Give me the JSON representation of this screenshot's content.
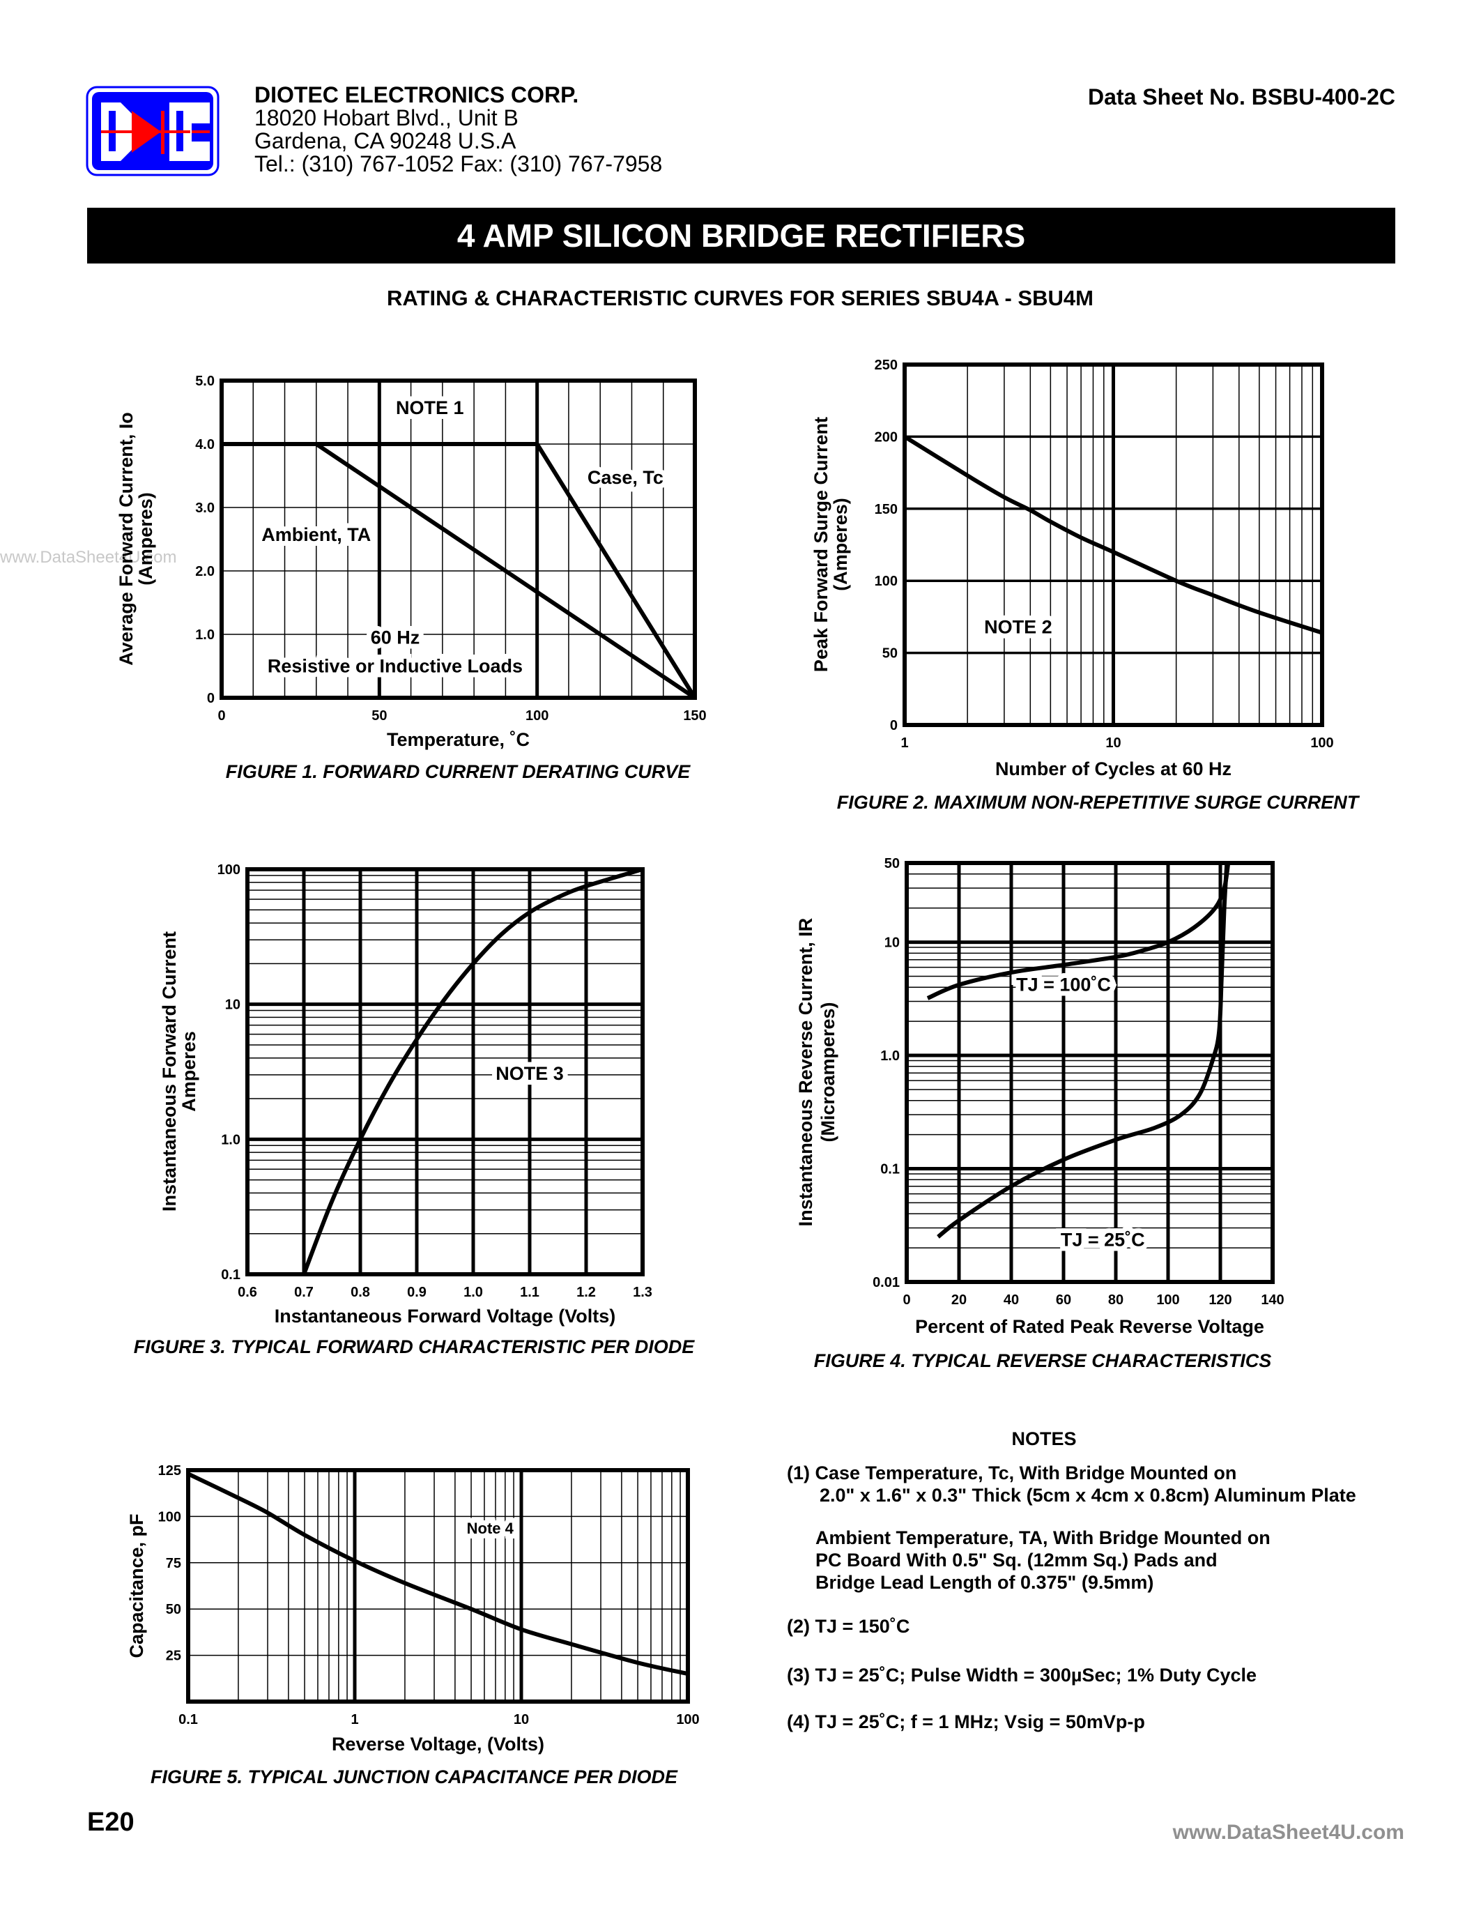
{
  "header": {
    "company": "DIOTEC   ELECTRONICS   CORP.",
    "address1": "18020 Hobart Blvd.,  Unit B",
    "address2": "Gardena, CA  90248    U.S.A",
    "phone": "Tel.:  (310) 767-1052    Fax:  (310) 767-7958",
    "datasheet_no": "Data Sheet No.  BSBU-400-2C",
    "logo_text": "DIC",
    "logo_colors": {
      "blue": "#0000ff",
      "red": "#ff0000"
    }
  },
  "title": "4 AMP SILICON BRIDGE RECTIFIERS",
  "subtitle": "RATING & CHARACTERISTIC CURVES FOR SERIES SBU4A - SBU4M",
  "watermark_left": "www.DataSheet4U.com",
  "watermark_right": "www.DataSheet4U.com",
  "page_number": "E20",
  "chart_data": [
    {
      "type": "line",
      "caption": "FIGURE 1.  FORWARD CURRENT DERATING CURVE",
      "xlabel": "Temperature, ˚C",
      "ylabel": [
        "Average Forward Current, Io",
        "(Amperes)"
      ],
      "xlim": [
        0,
        150
      ],
      "ylim": [
        0,
        5
      ],
      "xticks": [
        "0",
        "50",
        "100",
        "150"
      ],
      "yticks": [
        "0",
        "1.0",
        "2.0",
        "3.0",
        "4.0",
        "5.0"
      ],
      "grid": true,
      "series": [
        {
          "name": "Ambient, TA",
          "x": [
            0,
            30,
            150
          ],
          "y": [
            4,
            4,
            0
          ]
        },
        {
          "name": "Case, Tc",
          "x": [
            0,
            100,
            150
          ],
          "y": [
            4,
            4,
            0
          ]
        }
      ],
      "annotations": [
        "NOTE 1",
        "Case, Tc",
        "Ambient, TA",
        "60 Hz",
        "Resistive or Inductive Loads"
      ]
    },
    {
      "type": "line",
      "caption": "FIGURE 2.  MAXIMUM NON-REPETITIVE SURGE CURRENT",
      "xlabel": "Number of Cycles at 60 Hz",
      "ylabel": [
        "Peak Forward Surge Current",
        "(Amperes)"
      ],
      "xscale": "log",
      "xlim": [
        1,
        100
      ],
      "ylim": [
        0,
        250
      ],
      "xticks": [
        "1",
        "10",
        "100"
      ],
      "yticks": [
        "0",
        "50",
        "100",
        "150",
        "200",
        "250"
      ],
      "grid": true,
      "series": [
        {
          "x": [
            1,
            2,
            3,
            4,
            5,
            7,
            10,
            20,
            30,
            50,
            100
          ],
          "y": [
            200,
            173,
            158,
            149,
            141,
            130,
            120,
            100,
            90,
            78,
            64
          ]
        }
      ],
      "annotations": [
        "NOTE 2"
      ]
    },
    {
      "type": "line",
      "caption": "FIGURE 3.  TYPICAL FORWARD CHARACTERISTIC PER DIODE",
      "xlabel": "Instantaneous Forward Voltage (Volts)",
      "ylabel": [
        "Instantaneous Forward Current",
        "Amperes"
      ],
      "xlim": [
        0.6,
        1.3
      ],
      "yscale": "log",
      "ylim": [
        0.1,
        100
      ],
      "xticks": [
        "0.6",
        "0.7",
        "0.8",
        "0.9",
        "1.0",
        "1.1",
        "1.2",
        "1.3"
      ],
      "yticks": [
        "0.1",
        "1.0",
        "10",
        "100"
      ],
      "grid": true,
      "series": [
        {
          "x": [
            0.7,
            0.75,
            0.8,
            0.85,
            0.9,
            0.95,
            1.0,
            1.05,
            1.1,
            1.15,
            1.2,
            1.3
          ],
          "y": [
            0.1,
            0.35,
            1.0,
            2.5,
            5.5,
            11,
            20,
            33,
            48,
            62,
            75,
            100
          ]
        }
      ],
      "annotations": [
        "NOTE 3"
      ]
    },
    {
      "type": "line",
      "caption": "FIGURE 4.  TYPICAL REVERSE CHARACTERISTICS",
      "xlabel": "Percent of Rated Peak Reverse Voltage",
      "ylabel": [
        "Instantaneous Reverse Current, IR",
        "(Microamperes)"
      ],
      "xlim": [
        0,
        140
      ],
      "yscale": "log",
      "ylim": [
        0.01,
        50
      ],
      "xticks": [
        "0",
        "20",
        "40",
        "60",
        "80",
        "100",
        "120",
        "140"
      ],
      "yticks": [
        "0.01",
        "0.1",
        "1.0",
        "10",
        "50"
      ],
      "grid": true,
      "series": [
        {
          "name": "TJ = 100˚C",
          "x": [
            8,
            20,
            40,
            60,
            80,
            90,
            100,
            110,
            118,
            121.5,
            123
          ],
          "y": [
            3.2,
            4.2,
            5.4,
            6.3,
            7.4,
            8.4,
            10,
            13.5,
            20,
            30,
            50
          ]
        },
        {
          "name": "TJ = 25˚C",
          "x": [
            12,
            20,
            40,
            60,
            80,
            95,
            105,
            112,
            117,
            119.5,
            120.5,
            121.5,
            122.5
          ],
          "y": [
            0.025,
            0.035,
            0.07,
            0.12,
            0.18,
            0.23,
            0.3,
            0.45,
            0.9,
            1.6,
            5,
            20,
            50
          ]
        }
      ],
      "annotations": [
        "TJ = 100˚C",
        "TJ = 25˚C"
      ]
    },
    {
      "type": "line",
      "caption": "FIGURE 5.  TYPICAL JUNCTION CAPACITANCE PER DIODE",
      "xlabel": "Reverse Voltage, (Volts)",
      "ylabel": [
        "Capacitance, pF"
      ],
      "xscale": "log",
      "xlim": [
        0.1,
        100
      ],
      "ylim": [
        0,
        125
      ],
      "xticks": [
        "0.1",
        "1",
        "10",
        "100"
      ],
      "yticks": [
        "25",
        "50",
        "75",
        "100",
        "125"
      ],
      "grid": true,
      "series": [
        {
          "x": [
            0.1,
            0.2,
            0.3,
            0.5,
            1,
            2,
            5,
            10,
            20,
            50,
            100
          ],
          "y": [
            123,
            110,
            102,
            90,
            76,
            64,
            50,
            39,
            31,
            21,
            15
          ]
        }
      ],
      "annotations": [
        "Note 4"
      ]
    }
  ],
  "notes": {
    "heading": "NOTES",
    "lines": [
      "(1) Case Temperature, Tc, With Bridge Mounted on",
      "2.0\" x 1.6\" x 0.3\" Thick (5cm x 4cm x 0.8cm) Aluminum Plate",
      "Ambient Temperature, TA,  With Bridge Mounted on",
      "PC Board With 0.5\" Sq. (12mm Sq.) Pads and",
      "Bridge Lead Length of  0.375\" (9.5mm)",
      "(2) TJ = 150˚C",
      "(3) TJ = 25˚C; Pulse Width = 300µSec; 1% Duty Cycle",
      "(4) TJ = 25˚C; f = 1 MHz; Vsig = 50mVp-p"
    ]
  }
}
